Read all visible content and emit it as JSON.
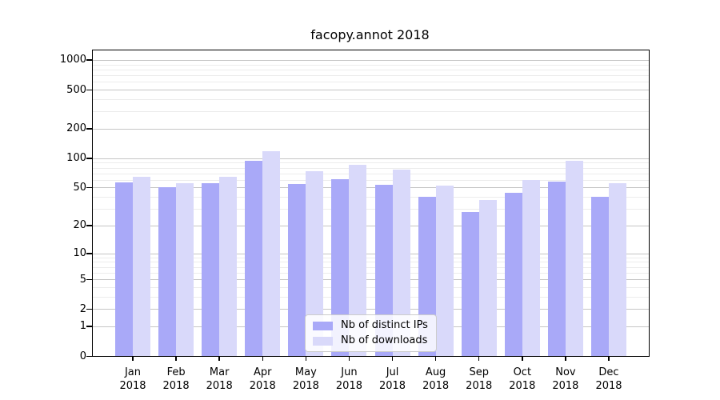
{
  "title": "facopy.annot 2018",
  "colors": {
    "ips": "#a9a9f8",
    "downloads": "#d9d9fa",
    "grid_major": "#c5c5c5",
    "grid_minor": "#ececec",
    "axis": "#000000"
  },
  "legend": {
    "items": [
      {
        "label": "Nb of distinct IPs",
        "color_key": "ips"
      },
      {
        "label": "Nb of downloads",
        "color_key": "downloads"
      }
    ]
  },
  "chart_data": {
    "type": "bar",
    "title": "facopy.annot 2018",
    "categories": [
      "Jan",
      "Feb",
      "Mar",
      "Apr",
      "May",
      "Jun",
      "Jul",
      "Aug",
      "Sep",
      "Oct",
      "Nov",
      "Dec"
    ],
    "x_year": "2018",
    "series": [
      {
        "name": "Nb of distinct IPs",
        "color_key": "ips",
        "values": [
          57,
          50,
          55,
          94,
          54,
          61,
          53,
          40,
          28,
          44,
          58,
          40
        ]
      },
      {
        "name": "Nb of downloads",
        "color_key": "downloads",
        "values": [
          64,
          55,
          64,
          117,
          74,
          86,
          76,
          52,
          37,
          60,
          94,
          55
        ]
      }
    ],
    "y_scale": "log1p",
    "y_ticks": [
      0,
      1,
      2,
      5,
      10,
      20,
      50,
      100,
      200,
      500,
      1000
    ],
    "y_minor_ticks": [
      3,
      4,
      6,
      7,
      8,
      9,
      30,
      40,
      60,
      70,
      80,
      90,
      300,
      400,
      600,
      700,
      800,
      900
    ],
    "ylim": [
      0,
      1250
    ],
    "grid": true,
    "legend_position": "bottom-center"
  }
}
